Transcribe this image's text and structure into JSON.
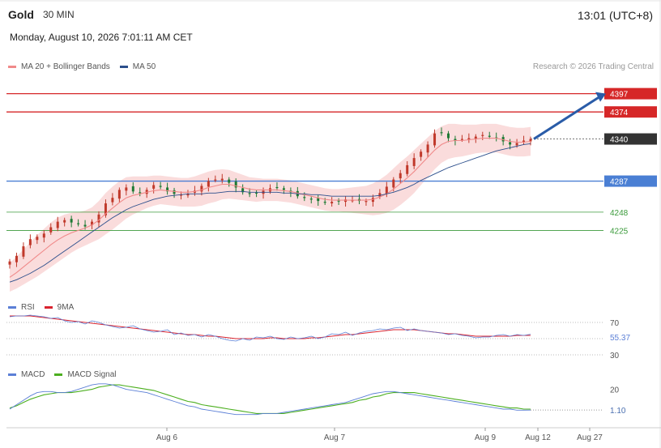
{
  "header": {
    "symbol": "Gold",
    "timeframe": "30 MIN",
    "clock": "13:01 (UTC+8)",
    "datetime": "Monday, August 10, 2026 7:01:11 AM CET",
    "copyright": "Research © 2026 Trading Central"
  },
  "colors": {
    "resistance": "#d62728",
    "pivot": "#4a7fd4",
    "support": "#3a9a3a",
    "last_price": "#333333",
    "candle_up": "#c0392b",
    "candle_down": "#1e7a34",
    "bollinger_fill": "#f9d6d6",
    "ma20": "#f08a8a",
    "ma50": "#2c4f8c",
    "arrow": "#2a5ca8",
    "rsi": "#5b7fd6",
    "rsi_ma": "#d9232f",
    "macd": "#5b7fd6",
    "macd_signal": "#4caf1f"
  },
  "chart_data": [
    {
      "type": "candlestick",
      "legend": [
        {
          "name": "MA 20 + Bollinger Bands",
          "color": "#f08a8a"
        },
        {
          "name": "MA 50",
          "color": "#2c4f8c"
        }
      ],
      "x_ticks": [
        "Aug 6",
        "Aug 7",
        "Aug 9",
        "Aug 12",
        "Aug 27"
      ],
      "ylim": [
        4148,
        4418
      ],
      "levels": [
        {
          "label": "4397",
          "value": 4397,
          "kind": "resistance"
        },
        {
          "label": "4374",
          "value": 4374,
          "kind": "resistance"
        },
        {
          "label": "4340",
          "value": 4340,
          "kind": "last_price"
        },
        {
          "label": "4287",
          "value": 4287,
          "kind": "pivot"
        },
        {
          "label": "4248",
          "value": 4248,
          "kind": "support"
        },
        {
          "label": "4225",
          "value": 4225,
          "kind": "support"
        }
      ],
      "close_series": [
        4186,
        4193,
        4205,
        4214,
        4217,
        4221,
        4229,
        4236,
        4238,
        4235,
        4233,
        4230,
        4236,
        4245,
        4259,
        4266,
        4276,
        4279,
        4274,
        4272,
        4276,
        4282,
        4280,
        4274,
        4271,
        4270,
        4271,
        4275,
        4281,
        4287,
        4289,
        4290,
        4285,
        4279,
        4273,
        4271,
        4272,
        4275,
        4278,
        4279,
        4276,
        4273,
        4268,
        4266,
        4264,
        4262,
        4260,
        4261,
        4262,
        4264,
        4263,
        4262,
        4262,
        4266,
        4272,
        4280,
        4289,
        4297,
        4307,
        4316,
        4324,
        4333,
        4347,
        4348,
        4341,
        4338,
        4340,
        4341,
        4343,
        4345,
        4343,
        4341,
        4337,
        4333,
        4335,
        4338,
        4340
      ],
      "ma20_series": [
        4166,
        4172,
        4179,
        4186,
        4193,
        4200,
        4207,
        4213,
        4218,
        4222,
        4225,
        4228,
        4232,
        4238,
        4246,
        4253,
        4260,
        4266,
        4269,
        4271,
        4273,
        4275,
        4276,
        4275,
        4274,
        4273,
        4273,
        4274,
        4276,
        4279,
        4281,
        4283,
        4283,
        4281,
        4279,
        4277,
        4276,
        4276,
        4276,
        4276,
        4275,
        4274,
        4272,
        4270,
        4268,
        4266,
        4264,
        4263,
        4263,
        4263,
        4263,
        4263,
        4263,
        4264,
        4267,
        4271,
        4277,
        4284,
        4291,
        4299,
        4308,
        4317,
        4326,
        4333,
        4337,
        4338,
        4338,
        4339,
        4340,
        4341,
        4341,
        4341,
        4339,
        4337,
        4336,
        4336,
        4337
      ],
      "ma50_series": [
        4160,
        4163,
        4167,
        4171,
        4176,
        4181,
        4187,
        4193,
        4199,
        4205,
        4211,
        4217,
        4223,
        4229,
        4235,
        4241,
        4246,
        4251,
        4255,
        4258,
        4261,
        4264,
        4266,
        4268,
        4269,
        4270,
        4271,
        4271,
        4271,
        4272,
        4272,
        4273,
        4274,
        4274,
        4274,
        4273,
        4273,
        4273,
        4273,
        4273,
        4272,
        4272,
        4271,
        4271,
        4270,
        4270,
        4269,
        4268,
        4268,
        4268,
        4268,
        4268,
        4268,
        4268,
        4269,
        4271,
        4273,
        4276,
        4279,
        4283,
        4288,
        4292,
        4296,
        4300,
        4304,
        4307,
        4310,
        4313,
        4316,
        4319,
        4322,
        4325,
        4327,
        4329,
        4331,
        4333,
        4334
      ],
      "band_width_series": [
        18,
        20,
        22,
        24,
        26,
        27,
        28,
        28,
        27,
        25,
        23,
        22,
        22,
        24,
        26,
        27,
        27,
        26,
        24,
        22,
        20,
        19,
        18,
        18,
        18,
        18,
        18,
        19,
        20,
        20,
        20,
        19,
        18,
        17,
        16,
        15,
        15,
        14,
        14,
        14,
        14,
        14,
        14,
        14,
        14,
        14,
        14,
        14,
        14,
        15,
        16,
        17,
        18,
        20,
        22,
        24,
        26,
        27,
        27,
        27,
        26,
        25,
        24,
        23,
        22,
        21,
        20,
        19,
        18,
        18,
        18,
        18,
        18,
        18,
        18,
        18,
        18
      ]
    },
    {
      "type": "line",
      "legend": [
        {
          "name": "RSI",
          "color": "#5b7fd6"
        },
        {
          "name": "9MA",
          "color": "#d9232f"
        }
      ],
      "ylim": [
        20,
        80
      ],
      "y_ticks": [
        "70",
        "30"
      ],
      "reference_lines": [
        70,
        50,
        30
      ],
      "last_value": "55.37",
      "series": [
        {
          "name": "RSI",
          "values": [
            77,
            78,
            78,
            79,
            78,
            77,
            75,
            76,
            72,
            70,
            71,
            68,
            72,
            70,
            67,
            65,
            63,
            64,
            66,
            62,
            60,
            58,
            59,
            61,
            55,
            57,
            54,
            55,
            52,
            55,
            53,
            50,
            48,
            47,
            50,
            48,
            52,
            51,
            53,
            50,
            49,
            52,
            50,
            51,
            53,
            50,
            52,
            56,
            55,
            58,
            54,
            57,
            59,
            60,
            62,
            61,
            63,
            64,
            60,
            62,
            60,
            59,
            58,
            57,
            55,
            56,
            54,
            53,
            51,
            52,
            52,
            54,
            55,
            53,
            55,
            54,
            55.37
          ]
        },
        {
          "name": "9MA",
          "values": [
            78,
            78,
            78,
            78,
            77,
            76,
            75,
            74,
            73,
            72,
            71,
            70,
            69,
            68,
            67,
            66,
            65,
            64,
            63,
            62,
            61,
            60,
            59,
            58,
            57,
            56,
            55,
            55,
            54,
            53,
            53,
            52,
            51,
            50,
            50,
            50,
            50,
            50,
            51,
            51,
            50,
            50,
            50,
            50,
            51,
            51,
            52,
            53,
            54,
            55,
            55,
            56,
            57,
            58,
            59,
            60,
            61,
            61,
            61,
            61,
            60,
            59,
            58,
            57,
            56,
            56,
            55,
            54,
            53,
            53,
            53,
            53,
            53,
            53,
            54,
            54,
            54
          ]
        }
      ]
    },
    {
      "type": "line",
      "legend": [
        {
          "name": "MACD",
          "color": "#5b7fd6"
        },
        {
          "name": "MACD Signal",
          "color": "#4caf1f"
        }
      ],
      "ylim": [
        -15,
        30
      ],
      "y_ticks": [
        "20",
        "1.10"
      ],
      "last_value": "1.10",
      "series": [
        {
          "name": "MACD",
          "values": [
            2,
            6,
            10,
            14,
            17,
            18,
            18,
            17,
            17,
            18,
            20,
            22,
            24,
            25,
            25,
            24,
            22,
            20,
            19,
            18,
            17,
            15,
            13,
            11,
            9,
            7,
            5,
            4,
            2,
            1,
            0,
            -1,
            -2,
            -3,
            -3,
            -3,
            -3,
            -2,
            -2,
            -2,
            -1,
            0,
            1,
            2,
            3,
            4,
            5,
            6,
            7,
            8,
            10,
            12,
            14,
            16,
            17,
            18,
            18,
            17,
            16,
            15,
            14,
            13,
            12,
            11,
            10,
            9,
            8,
            7,
            6,
            5,
            4,
            3,
            2,
            2,
            1,
            1,
            1.1
          ]
        },
        {
          "name": "MACD Signal",
          "values": [
            3,
            5,
            8,
            11,
            13,
            15,
            16,
            17,
            17,
            17,
            18,
            19,
            20,
            22,
            23,
            24,
            24,
            23,
            22,
            21,
            20,
            19,
            17,
            15,
            13,
            11,
            9,
            8,
            6,
            5,
            4,
            3,
            2,
            1,
            0,
            -1,
            -2,
            -2,
            -2,
            -2,
            -2,
            -1,
            0,
            1,
            2,
            3,
            4,
            5,
            6,
            7,
            8,
            10,
            11,
            13,
            14,
            16,
            17,
            17,
            17,
            17,
            16,
            15,
            14,
            13,
            12,
            11,
            10,
            9,
            8,
            7,
            6,
            5,
            4,
            3,
            3,
            2,
            2
          ]
        }
      ]
    }
  ]
}
